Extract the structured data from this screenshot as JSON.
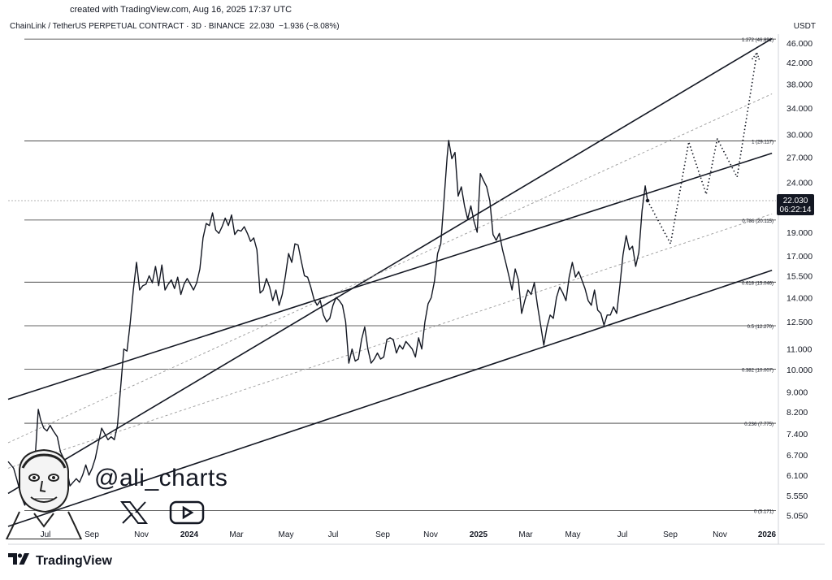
{
  "header": {
    "created": "created with TradingView.com, Aug 16, 2025 17:37 UTC",
    "instrument": "ChainLink / TetherUS PERPETUAL CONTRACT · 3D · BINANCE",
    "price": "22.030",
    "change": "−1.936 (−8.08%)",
    "currency": "USDT"
  },
  "price_badge": {
    "price": "22.030",
    "countdown": "06:22:14",
    "color": "#131722"
  },
  "brand": {
    "name": "TradingView",
    "icon": "tradingview-logo"
  },
  "watermark": {
    "handle": "@ali_charts",
    "icons": [
      "x-icon",
      "youtube-icon",
      "avatar-caricature"
    ]
  },
  "chart_data": {
    "type": "line",
    "y_scale": "log",
    "ylim": [
      4.8,
      48
    ],
    "y_ticks": [
      "46.000",
      "42.000",
      "38.000",
      "34.000",
      "30.000",
      "27.000",
      "24.000",
      "19.000",
      "17.000",
      "15.500",
      "14.000",
      "12.500",
      "11.000",
      "10.000",
      "9.000",
      "8.200",
      "7.400",
      "6.700",
      "6.100",
      "5.550",
      "5.050"
    ],
    "x_ticks": [
      "Jul",
      "Sep",
      "Nov",
      "2024",
      "Mar",
      "May",
      "Jul",
      "Sep",
      "Nov",
      "2025",
      "Mar",
      "May",
      "Jul",
      "Sep",
      "Nov",
      "2026"
    ],
    "x_range": [
      "2023-06-01",
      "2026-01-25"
    ],
    "series": [
      {
        "values": [
          [
            "2023-06-01",
            6.5
          ],
          [
            "2023-06-08",
            6.3
          ],
          [
            "2023-06-13",
            5.9
          ],
          [
            "2023-06-18",
            5.5
          ],
          [
            "2023-06-22",
            5.3
          ],
          [
            "2023-06-26",
            5.6
          ],
          [
            "2023-06-30",
            6.2
          ],
          [
            "2023-07-05",
            6.6
          ],
          [
            "2023-07-09",
            8.3
          ],
          [
            "2023-07-12",
            7.9
          ],
          [
            "2023-07-16",
            7.6
          ],
          [
            "2023-07-20",
            7.5
          ],
          [
            "2023-07-24",
            7.7
          ],
          [
            "2023-07-28",
            7.5
          ],
          [
            "2023-08-02",
            7.3
          ],
          [
            "2023-08-06",
            6.8
          ],
          [
            "2023-08-10",
            6.6
          ],
          [
            "2023-08-14",
            6.3
          ],
          [
            "2023-08-18",
            5.8
          ],
          [
            "2023-08-22",
            5.9
          ],
          [
            "2023-08-26",
            6.0
          ],
          [
            "2023-08-30",
            5.9
          ],
          [
            "2023-09-03",
            6.1
          ],
          [
            "2023-09-07",
            6.4
          ],
          [
            "2023-09-11",
            6.1
          ],
          [
            "2023-09-15",
            6.3
          ],
          [
            "2023-09-19",
            6.6
          ],
          [
            "2023-09-23",
            7.1
          ],
          [
            "2023-09-27",
            7.6
          ],
          [
            "2023-10-01",
            7.4
          ],
          [
            "2023-10-05",
            7.2
          ],
          [
            "2023-10-09",
            7.3
          ],
          [
            "2023-10-13",
            7.2
          ],
          [
            "2023-10-17",
            7.7
          ],
          [
            "2023-10-21",
            9.2
          ],
          [
            "2023-10-25",
            11.0
          ],
          [
            "2023-10-29",
            10.9
          ],
          [
            "2023-11-02",
            12.4
          ],
          [
            "2023-11-06",
            14.5
          ],
          [
            "2023-11-10",
            16.5
          ],
          [
            "2023-11-14",
            14.5
          ],
          [
            "2023-11-18",
            14.8
          ],
          [
            "2023-11-22",
            14.9
          ],
          [
            "2023-11-26",
            15.5
          ],
          [
            "2023-11-30",
            15.0
          ],
          [
            "2023-12-04",
            16.2
          ],
          [
            "2023-12-08",
            14.8
          ],
          [
            "2023-12-12",
            16.3
          ],
          [
            "2023-12-16",
            14.5
          ],
          [
            "2023-12-20",
            14.9
          ],
          [
            "2023-12-24",
            15.2
          ],
          [
            "2023-12-28",
            14.6
          ],
          [
            "2024-01-01",
            15.4
          ],
          [
            "2024-01-05",
            14.2
          ],
          [
            "2024-01-09",
            14.9
          ],
          [
            "2024-01-13",
            15.3
          ],
          [
            "2024-01-17",
            14.9
          ],
          [
            "2024-01-21",
            14.5
          ],
          [
            "2024-01-25",
            15.0
          ],
          [
            "2024-01-29",
            16.0
          ],
          [
            "2024-02-02",
            18.5
          ],
          [
            "2024-02-06",
            19.8
          ],
          [
            "2024-02-10",
            19.6
          ],
          [
            "2024-02-14",
            20.8
          ],
          [
            "2024-02-18",
            19.2
          ],
          [
            "2024-02-22",
            18.9
          ],
          [
            "2024-02-26",
            19.5
          ],
          [
            "2024-03-01",
            20.3
          ],
          [
            "2024-03-05",
            19.6
          ],
          [
            "2024-03-09",
            20.6
          ],
          [
            "2024-03-13",
            18.8
          ],
          [
            "2024-03-17",
            19.2
          ],
          [
            "2024-03-21",
            19.1
          ],
          [
            "2024-03-25",
            19.5
          ],
          [
            "2024-03-29",
            18.9
          ],
          [
            "2024-04-02",
            18.2
          ],
          [
            "2024-04-06",
            18.5
          ],
          [
            "2024-04-10",
            17.5
          ],
          [
            "2024-04-14",
            14.3
          ],
          [
            "2024-04-18",
            14.5
          ],
          [
            "2024-04-22",
            15.3
          ],
          [
            "2024-04-26",
            14.7
          ],
          [
            "2024-04-30",
            13.8
          ],
          [
            "2024-05-04",
            14.5
          ],
          [
            "2024-05-08",
            13.5
          ],
          [
            "2024-05-12",
            14.2
          ],
          [
            "2024-05-16",
            15.5
          ],
          [
            "2024-05-20",
            17.2
          ],
          [
            "2024-05-24",
            16.5
          ],
          [
            "2024-05-28",
            18.0
          ],
          [
            "2024-06-01",
            17.9
          ],
          [
            "2024-06-05",
            16.6
          ],
          [
            "2024-06-09",
            15.5
          ],
          [
            "2024-06-13",
            15.4
          ],
          [
            "2024-06-17",
            14.7
          ],
          [
            "2024-06-21",
            13.9
          ],
          [
            "2024-06-25",
            13.5
          ],
          [
            "2024-06-29",
            13.8
          ],
          [
            "2024-07-03",
            12.9
          ],
          [
            "2024-07-07",
            12.5
          ],
          [
            "2024-07-11",
            12.7
          ],
          [
            "2024-07-15",
            13.5
          ],
          [
            "2024-07-19",
            14.0
          ],
          [
            "2024-07-23",
            13.8
          ],
          [
            "2024-07-27",
            13.5
          ],
          [
            "2024-07-31",
            12.5
          ],
          [
            "2024-08-04",
            10.3
          ],
          [
            "2024-08-08",
            11.0
          ],
          [
            "2024-08-12",
            10.4
          ],
          [
            "2024-08-16",
            10.5
          ],
          [
            "2024-08-20",
            11.5
          ],
          [
            "2024-08-24",
            12.2
          ],
          [
            "2024-08-28",
            11.0
          ],
          [
            "2024-09-01",
            10.3
          ],
          [
            "2024-09-05",
            10.5
          ],
          [
            "2024-09-09",
            10.8
          ],
          [
            "2024-09-13",
            10.5
          ],
          [
            "2024-09-17",
            10.6
          ],
          [
            "2024-09-21",
            11.5
          ],
          [
            "2024-09-25",
            11.6
          ],
          [
            "2024-09-29",
            11.5
          ],
          [
            "2024-10-03",
            10.8
          ],
          [
            "2024-10-07",
            11.2
          ],
          [
            "2024-10-11",
            11.0
          ],
          [
            "2024-10-15",
            11.4
          ],
          [
            "2024-10-19",
            11.2
          ],
          [
            "2024-10-23",
            11.0
          ],
          [
            "2024-10-27",
            10.6
          ],
          [
            "2024-10-31",
            11.6
          ],
          [
            "2024-11-04",
            11.0
          ],
          [
            "2024-11-08",
            12.5
          ],
          [
            "2024-11-12",
            13.6
          ],
          [
            "2024-11-16",
            14.0
          ],
          [
            "2024-11-20",
            15.1
          ],
          [
            "2024-11-24",
            17.2
          ],
          [
            "2024-11-28",
            18.0
          ],
          [
            "2024-12-02",
            22.0
          ],
          [
            "2024-12-06",
            27.0
          ],
          [
            "2024-12-08",
            29.2
          ],
          [
            "2024-12-12",
            26.8
          ],
          [
            "2024-12-16",
            27.6
          ],
          [
            "2024-12-20",
            22.5
          ],
          [
            "2024-12-24",
            23.5
          ],
          [
            "2024-12-28",
            21.5
          ],
          [
            "2025-01-01",
            20.2
          ],
          [
            "2025-01-05",
            21.5
          ],
          [
            "2025-01-09",
            20.0
          ],
          [
            "2025-01-13",
            19.0
          ],
          [
            "2025-01-17",
            25.0
          ],
          [
            "2025-01-21",
            24.2
          ],
          [
            "2025-01-25",
            23.5
          ],
          [
            "2025-01-29",
            22.0
          ],
          [
            "2025-02-02",
            18.8
          ],
          [
            "2025-02-06",
            18.3
          ],
          [
            "2025-02-10",
            18.9
          ],
          [
            "2025-02-14",
            17.5
          ],
          [
            "2025-02-18",
            16.5
          ],
          [
            "2025-02-22",
            15.5
          ],
          [
            "2025-02-26",
            14.5
          ],
          [
            "2025-03-02",
            16.0
          ],
          [
            "2025-03-06",
            15.2
          ],
          [
            "2025-03-10",
            13.0
          ],
          [
            "2025-03-14",
            13.8
          ],
          [
            "2025-03-18",
            14.5
          ],
          [
            "2025-03-22",
            14.2
          ],
          [
            "2025-03-26",
            15.0
          ],
          [
            "2025-03-30",
            13.5
          ],
          [
            "2025-04-03",
            12.3
          ],
          [
            "2025-04-07",
            11.2
          ],
          [
            "2025-04-11",
            12.2
          ],
          [
            "2025-04-15",
            12.9
          ],
          [
            "2025-04-19",
            12.7
          ],
          [
            "2025-04-23",
            14.0
          ],
          [
            "2025-04-27",
            14.7
          ],
          [
            "2025-05-01",
            14.3
          ],
          [
            "2025-05-05",
            13.8
          ],
          [
            "2025-05-09",
            15.4
          ],
          [
            "2025-05-13",
            16.5
          ],
          [
            "2025-05-17",
            15.4
          ],
          [
            "2025-05-21",
            15.8
          ],
          [
            "2025-05-25",
            15.2
          ],
          [
            "2025-05-29",
            14.6
          ],
          [
            "2025-06-02",
            13.8
          ],
          [
            "2025-06-06",
            13.5
          ],
          [
            "2025-06-10",
            14.5
          ],
          [
            "2025-06-14",
            13.2
          ],
          [
            "2025-06-18",
            13.0
          ],
          [
            "2025-06-22",
            12.3
          ],
          [
            "2025-06-26",
            12.9
          ],
          [
            "2025-06-30",
            12.9
          ],
          [
            "2025-07-04",
            13.4
          ],
          [
            "2025-07-08",
            13.0
          ],
          [
            "2025-07-12",
            14.8
          ],
          [
            "2025-07-16",
            17.1
          ],
          [
            "2025-07-20",
            18.7
          ],
          [
            "2025-07-24",
            17.5
          ],
          [
            "2025-07-28",
            17.8
          ],
          [
            "2025-08-01",
            16.2
          ],
          [
            "2025-08-05",
            17.3
          ],
          [
            "2025-08-09",
            21.0
          ],
          [
            "2025-08-13",
            23.6
          ],
          [
            "2025-08-16",
            22.03
          ]
        ]
      },
      {
        "style": "dotted",
        "values": [
          [
            "2025-08-16",
            22.03
          ],
          [
            "2025-09-14",
            18.0
          ],
          [
            "2025-10-07",
            29.0
          ],
          [
            "2025-10-29",
            22.7
          ],
          [
            "2025-11-12",
            29.4
          ],
          [
            "2025-12-07",
            24.6
          ],
          [
            "2026-01-01",
            44.0
          ]
        ]
      }
    ],
    "channel_lines": [
      {
        "style": "solid",
        "from": [
          "2023-06-01",
          5.6
        ],
        "to": [
          "2026-01-20",
          47.0
        ]
      },
      {
        "style": "solid",
        "from": [
          "2023-06-01",
          8.7
        ],
        "to": [
          "2026-01-20",
          27.5
        ]
      },
      {
        "style": "solid",
        "from": [
          "2023-06-01",
          4.8
        ],
        "to": [
          "2026-01-20",
          15.9
        ]
      },
      {
        "style": "dashed",
        "from": [
          "2023-06-01",
          7.1
        ],
        "to": [
          "2026-01-20",
          36.3
        ]
      },
      {
        "style": "dashed",
        "from": [
          "2023-06-01",
          6.3
        ],
        "to": [
          "2026-01-20",
          20.7
        ]
      }
    ],
    "fib_levels": [
      {
        "label": "1.272 (46.891)",
        "value": 46.891
      },
      {
        "label": "1 (29.117)",
        "value": 29.117
      },
      {
        "label": "0.786 (20.115)",
        "value": 20.115
      },
      {
        "label": "0.618 (15.046)",
        "value": 15.046
      },
      {
        "label": "0.5 (12.270)",
        "value": 12.27
      },
      {
        "label": "0.382 (10.007)",
        "value": 10.007
      },
      {
        "label": "0.236 (7.775)",
        "value": 7.775
      },
      {
        "label": "0 (5.171)",
        "value": 5.171
      }
    ],
    "last_price": 22.03,
    "grid": false
  }
}
